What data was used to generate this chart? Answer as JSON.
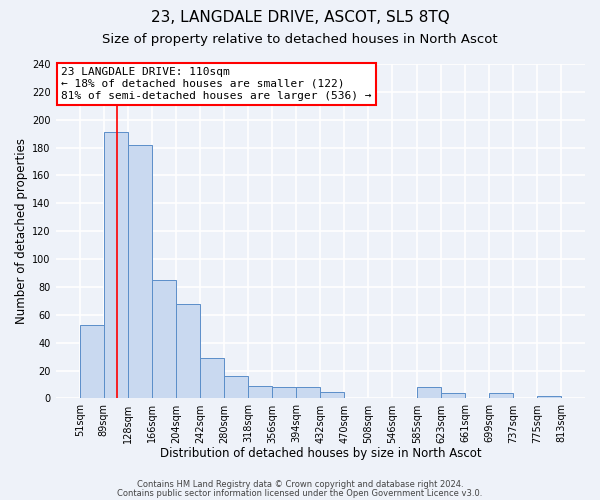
{
  "title": "23, LANGDALE DRIVE, ASCOT, SL5 8TQ",
  "subtitle": "Size of property relative to detached houses in North Ascot",
  "xlabel": "Distribution of detached houses by size in North Ascot",
  "ylabel": "Number of detached properties",
  "bar_edges": [
    51,
    89,
    128,
    166,
    204,
    242,
    280,
    318,
    356,
    394,
    432,
    470,
    508,
    546,
    585,
    623,
    661,
    699,
    737,
    775,
    813
  ],
  "bar_heights": [
    53,
    191,
    182,
    85,
    68,
    29,
    16,
    9,
    8,
    8,
    5,
    0,
    0,
    0,
    8,
    4,
    0,
    4,
    0,
    2
  ],
  "bar_color": "#c9d9f0",
  "bar_edge_color": "#5b8ec9",
  "red_line_x": 110,
  "annotation_title": "23 LANGDALE DRIVE: 110sqm",
  "annotation_line1": "← 18% of detached houses are smaller (122)",
  "annotation_line2": "81% of semi-detached houses are larger (536) →",
  "annotation_box_color": "white",
  "annotation_box_edge": "red",
  "ylim": [
    0,
    240
  ],
  "yticks": [
    0,
    20,
    40,
    60,
    80,
    100,
    120,
    140,
    160,
    180,
    200,
    220,
    240
  ],
  "xtick_labels": [
    "51sqm",
    "89sqm",
    "128sqm",
    "166sqm",
    "204sqm",
    "242sqm",
    "280sqm",
    "318sqm",
    "356sqm",
    "394sqm",
    "432sqm",
    "470sqm",
    "508sqm",
    "546sqm",
    "585sqm",
    "623sqm",
    "661sqm",
    "699sqm",
    "737sqm",
    "775sqm",
    "813sqm"
  ],
  "footer1": "Contains HM Land Registry data © Crown copyright and database right 2024.",
  "footer2": "Contains public sector information licensed under the Open Government Licence v3.0.",
  "bg_color": "#eef2f9",
  "grid_color": "white",
  "title_fontsize": 11,
  "subtitle_fontsize": 9.5,
  "axis_fontsize": 8.5,
  "tick_fontsize": 7,
  "footer_fontsize": 6,
  "ann_fontsize": 8
}
